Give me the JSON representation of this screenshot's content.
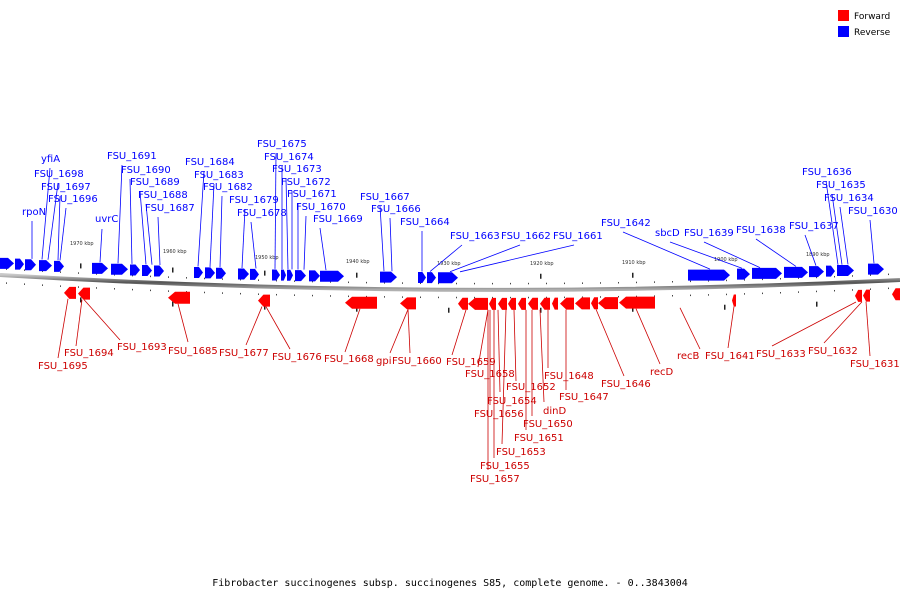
{
  "legend": {
    "forward_label": "Forward",
    "reverse_label": "Reverse",
    "forward_color": "#ff0000",
    "reverse_color": "#0000ff"
  },
  "caption": "Fibrobacter succinogenes subsp. succinogenes S85, complete genome. - 0..3843004",
  "scale_labels": [
    "1970 kbp",
    "1960 kbp",
    "1950 kbp",
    "1940 kbp",
    "1930 kbp",
    "1920 kbp",
    "1910 kbp",
    "1900 kbp",
    "1890 kbp"
  ],
  "reverse_labels": [
    "rpoN",
    "yfiA",
    "FSU_1698",
    "FSU_1697",
    "FSU_1696",
    "uvrC",
    "FSU_1691",
    "FSU_1690",
    "FSU_1689",
    "FSU_1688",
    "FSU_1687",
    "FSU_1684",
    "FSU_1683",
    "FSU_1682",
    "FSU_1679",
    "FSU_1678",
    "FSU_1675",
    "FSU_1674",
    "FSU_1673",
    "FSU_1672",
    "FSU_1671",
    "FSU_1670",
    "FSU_1669",
    "FSU_1667",
    "FSU_1666",
    "FSU_1664",
    "FSU_1663",
    "FSU_1662",
    "FSU_1661",
    "FSU_1642",
    "sbcD",
    "FSU_1639",
    "FSU_1638",
    "FSU_1637",
    "FSU_1636",
    "FSU_1635",
    "FSU_1634",
    "FSU_1630"
  ],
  "forward_labels": [
    "FSU_1695",
    "FSU_1694",
    "FSU_1693",
    "FSU_1685",
    "FSU_1677",
    "FSU_1676",
    "FSU_1668",
    "gpi",
    "FSU_1660",
    "FSU_1659",
    "FSU_1658",
    "FSU_1656",
    "FSU_1654",
    "FSU_1655",
    "FSU_1657",
    "FSU_1653",
    "FSU_1652",
    "FSU_1651",
    "FSU_1650",
    "dinD",
    "FSU_1648",
    "FSU_1647",
    "FSU_1646",
    "recD",
    "recB",
    "FSU_1641",
    "FSU_1633",
    "FSU_1632",
    "FSU_1631"
  ]
}
